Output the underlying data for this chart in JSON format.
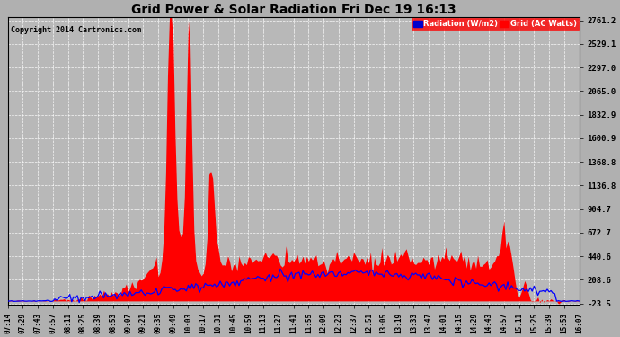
{
  "title": "Grid Power & Solar Radiation Fri Dec 19 16:13",
  "copyright": "Copyright 2014 Cartronics.com",
  "background_color": "#b0b0b0",
  "plot_bg_color": "#b8b8b8",
  "yticks": [
    2761.2,
    2529.1,
    2297.0,
    2065.0,
    1832.9,
    1600.9,
    1368.8,
    1136.8,
    904.7,
    672.7,
    440.6,
    208.6,
    -23.5
  ],
  "ymin": -23.5,
  "ymax": 2761.2,
  "legend_radiation_label": "Radiation (W/m2)",
  "legend_grid_label": "Grid (AC Watts)",
  "radiation_color": "#0000ff",
  "grid_fill_color": "#ff0000",
  "xtick_labels": [
    "07:14",
    "07:29",
    "07:43",
    "07:57",
    "08:11",
    "08:25",
    "08:39",
    "08:53",
    "09:07",
    "09:21",
    "09:35",
    "09:49",
    "10:03",
    "10:17",
    "10:31",
    "10:45",
    "10:59",
    "11:13",
    "11:27",
    "11:41",
    "11:55",
    "12:09",
    "12:23",
    "12:37",
    "12:51",
    "13:05",
    "13:19",
    "13:33",
    "13:47",
    "14:01",
    "14:15",
    "14:29",
    "14:43",
    "14:57",
    "15:11",
    "15:25",
    "15:39",
    "15:53",
    "16:07"
  ]
}
